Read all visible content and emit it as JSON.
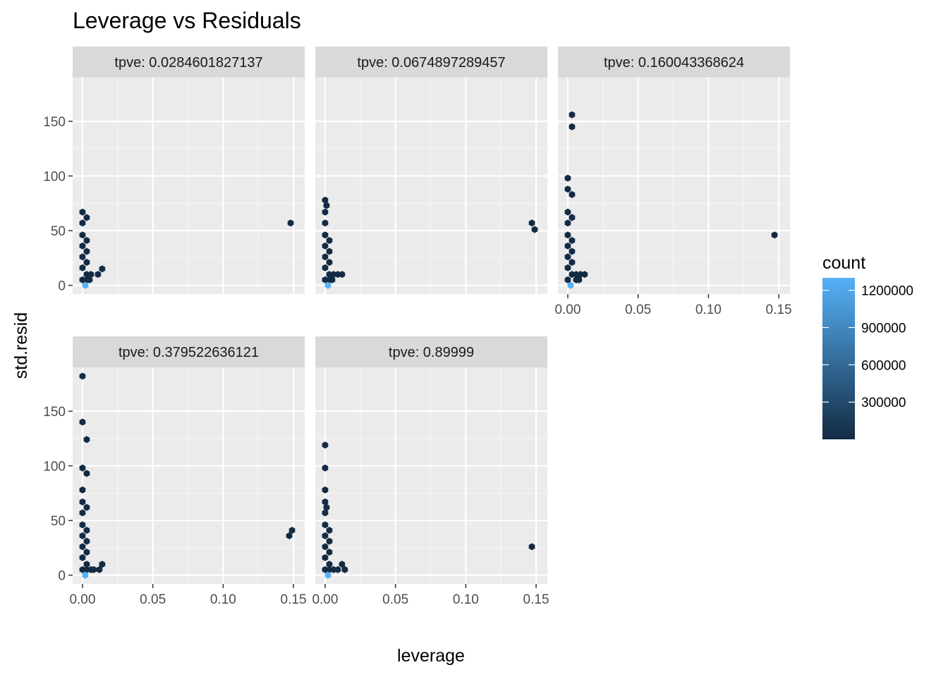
{
  "chart_data": {
    "type": "hexbin-facets",
    "title": "Leverage vs Residuals",
    "xlabel": "leverage",
    "ylabel": "std.resid",
    "xlim": [
      -0.007,
      0.158
    ],
    "ylim": [
      -8,
      190
    ],
    "x_ticks": [
      0,
      0.05,
      0.1,
      0.15
    ],
    "x_tick_labels": [
      "0.00",
      "0.05",
      "0.10",
      "0.15"
    ],
    "y_ticks": [
      0,
      50,
      100,
      150
    ],
    "y_tick_labels": [
      "0",
      "50",
      "100",
      "150"
    ],
    "grid": true,
    "legend": {
      "title": "count",
      "position": "right",
      "range": [
        0,
        1300000
      ],
      "breaks": [
        300000,
        600000,
        900000,
        1200000
      ],
      "break_labels": [
        "300000",
        "600000",
        "900000",
        "1200000"
      ],
      "color_low": "#132b43",
      "color_high": "#56b1f7"
    },
    "panels": [
      {
        "label": "tpve: 0.0284601827137",
        "points": [
          [
            0.0,
            67
          ],
          [
            0.0,
            57
          ],
          [
            0.003,
            62
          ],
          [
            0.0,
            46
          ],
          [
            0.0,
            36
          ],
          [
            0.0,
            26
          ],
          [
            0.0,
            16
          ],
          [
            0.003,
            41
          ],
          [
            0.003,
            31
          ],
          [
            0.003,
            21
          ],
          [
            0.003,
            10
          ],
          [
            0.0,
            5
          ],
          [
            0.003,
            5
          ],
          [
            0.005,
            5
          ],
          [
            0.006,
            10
          ],
          [
            0.011,
            10
          ],
          [
            0.014,
            15
          ],
          [
            0.148,
            57
          ],
          [
            0.002,
            0,
            1300000
          ]
        ]
      },
      {
        "label": "tpve: 0.0674897289457",
        "points": [
          [
            0.0,
            78
          ],
          [
            0.0,
            67
          ],
          [
            0.001,
            73
          ],
          [
            0.0,
            57
          ],
          [
            0.0,
            46
          ],
          [
            0.0,
            36
          ],
          [
            0.0,
            26
          ],
          [
            0.0,
            16
          ],
          [
            0.003,
            41
          ],
          [
            0.003,
            31
          ],
          [
            0.003,
            21
          ],
          [
            0.003,
            10
          ],
          [
            0.0,
            5
          ],
          [
            0.003,
            5
          ],
          [
            0.005,
            5
          ],
          [
            0.006,
            10
          ],
          [
            0.009,
            10
          ],
          [
            0.012,
            10
          ],
          [
            0.147,
            57
          ],
          [
            0.149,
            51
          ],
          [
            0.002,
            0,
            1300000
          ]
        ]
      },
      {
        "label": "tpve: 0.160043368624",
        "points": [
          [
            0.003,
            156
          ],
          [
            0.003,
            145
          ],
          [
            0.0,
            98
          ],
          [
            0.0,
            88
          ],
          [
            0.003,
            83
          ],
          [
            0.0,
            67
          ],
          [
            0.0,
            57
          ],
          [
            0.003,
            62
          ],
          [
            0.0,
            46
          ],
          [
            0.0,
            36
          ],
          [
            0.0,
            26
          ],
          [
            0.0,
            16
          ],
          [
            0.003,
            41
          ],
          [
            0.003,
            31
          ],
          [
            0.003,
            21
          ],
          [
            0.003,
            10
          ],
          [
            0.0,
            5
          ],
          [
            0.006,
            5
          ],
          [
            0.008,
            5
          ],
          [
            0.006,
            10
          ],
          [
            0.009,
            10
          ],
          [
            0.012,
            10
          ],
          [
            0.147,
            46
          ],
          [
            0.002,
            0,
            1300000
          ]
        ]
      },
      {
        "label": "tpve: 0.379522636121",
        "points": [
          [
            0.0,
            182
          ],
          [
            0.0,
            140
          ],
          [
            0.003,
            124
          ],
          [
            0.0,
            98
          ],
          [
            0.003,
            93
          ],
          [
            0.0,
            78
          ],
          [
            0.0,
            67
          ],
          [
            0.0,
            57
          ],
          [
            0.003,
            62
          ],
          [
            0.0,
            46
          ],
          [
            0.0,
            36
          ],
          [
            0.0,
            26
          ],
          [
            0.0,
            16
          ],
          [
            0.003,
            41
          ],
          [
            0.003,
            31
          ],
          [
            0.003,
            21
          ],
          [
            0.003,
            10
          ],
          [
            0.0,
            5
          ],
          [
            0.003,
            5
          ],
          [
            0.006,
            5
          ],
          [
            0.008,
            5
          ],
          [
            0.012,
            5
          ],
          [
            0.014,
            10
          ],
          [
            0.147,
            36
          ],
          [
            0.149,
            41
          ],
          [
            0.002,
            0,
            1300000
          ]
        ]
      },
      {
        "label": "tpve: 0.89999",
        "points": [
          [
            0.0,
            119
          ],
          [
            0.0,
            98
          ],
          [
            0.0,
            78
          ],
          [
            0.0,
            67
          ],
          [
            0.001,
            62
          ],
          [
            0.0,
            57
          ],
          [
            0.0,
            46
          ],
          [
            0.0,
            36
          ],
          [
            0.0,
            26
          ],
          [
            0.0,
            16
          ],
          [
            0.003,
            41
          ],
          [
            0.003,
            31
          ],
          [
            0.003,
            21
          ],
          [
            0.003,
            10
          ],
          [
            0.0,
            5
          ],
          [
            0.003,
            5
          ],
          [
            0.006,
            5
          ],
          [
            0.009,
            5
          ],
          [
            0.012,
            10
          ],
          [
            0.014,
            5
          ],
          [
            0.147,
            26
          ],
          [
            0.002,
            0,
            1300000
          ]
        ]
      }
    ]
  }
}
